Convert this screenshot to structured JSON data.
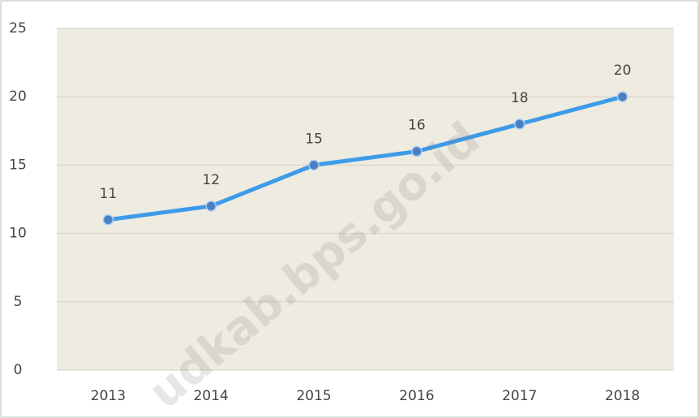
{
  "chart_data": {
    "type": "line",
    "categories": [
      "2013",
      "2014",
      "2015",
      "2016",
      "2017",
      "2018"
    ],
    "series": [
      {
        "name": null,
        "color": "#3d9be9",
        "values": [
          11,
          12,
          15,
          16,
          18,
          20
        ]
      }
    ],
    "ylim": [
      0,
      25
    ],
    "yticks": [
      0,
      5,
      10,
      15,
      20,
      25
    ],
    "grid": true,
    "watermark": "udkab.bps.go.id"
  }
}
